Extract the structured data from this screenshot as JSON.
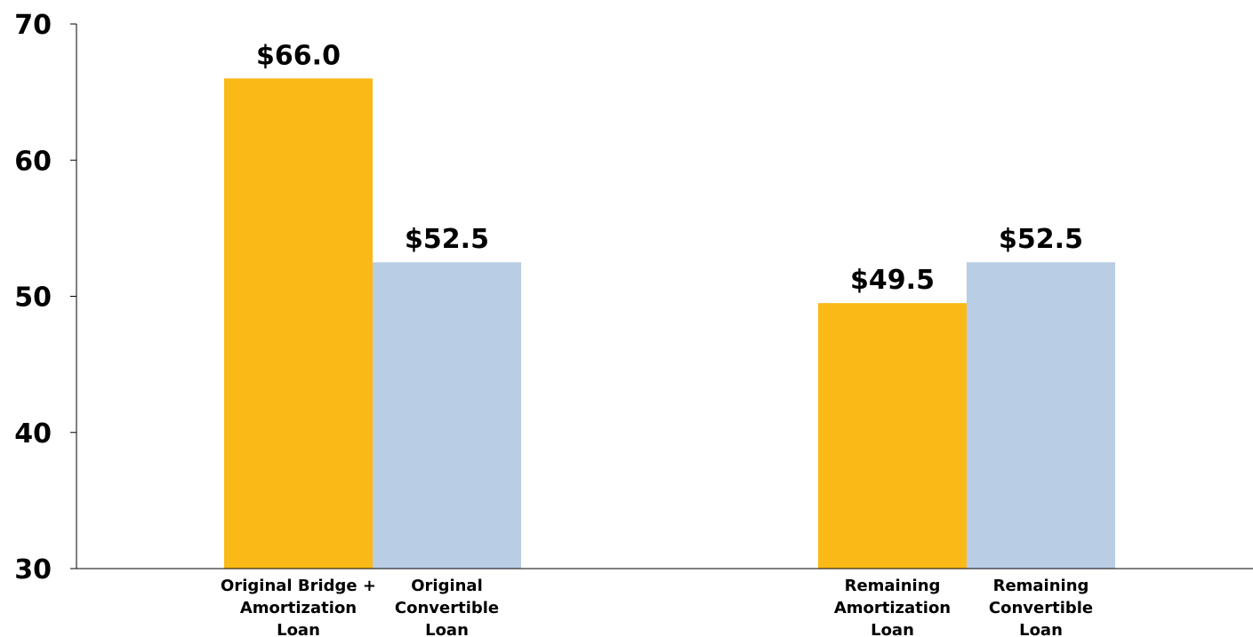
{
  "chart_data": {
    "type": "bar",
    "title": "",
    "xlabel": "",
    "ylabel": "",
    "ylim": [
      30,
      70
    ],
    "yticks": [
      30,
      40,
      50,
      60,
      70
    ],
    "grid": false,
    "legend": "none",
    "bars": [
      {
        "label_lines": [
          "Original Bridge +",
          "Amortization",
          "Loan"
        ],
        "value": 66.0,
        "value_label": "$66.0",
        "color": "#FBB917",
        "group": 0
      },
      {
        "label_lines": [
          "Original",
          "Convertible",
          "Loan"
        ],
        "value": 52.5,
        "value_label": "$52.5",
        "color": "#B9CDE5",
        "group": 0
      },
      {
        "label_lines": [
          "Remaining",
          "Amortization",
          "Loan"
        ],
        "value": 49.5,
        "value_label": "$49.5",
        "color": "#FBB917",
        "group": 1
      },
      {
        "label_lines": [
          "Remaining",
          "Convertible",
          "Loan"
        ],
        "value": 52.5,
        "value_label": "$52.5",
        "color": "#B9CDE5",
        "group": 1
      }
    ]
  }
}
